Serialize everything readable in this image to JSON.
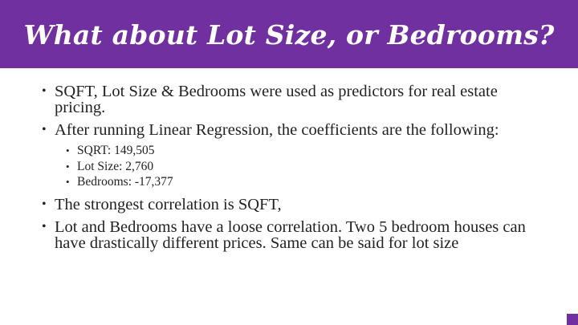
{
  "slide": {
    "title": "What about Lot Size, or Bedrooms?",
    "accent_color": "#7030a0",
    "bullets": [
      {
        "text": "SQFT, Lot Size & Bedrooms were used as predictors for real estate pricing."
      },
      {
        "text": "After running Linear Regression, the coefficients are the following:",
        "sub_bullets": [
          "SQRT: 149,505",
          "Lot Size: 2,760",
          "Bedrooms: -17,377"
        ]
      },
      {
        "text": "The strongest correlation is SQFT,"
      },
      {
        "text": "Lot and Bedrooms have a loose correlation. Two 5 bedroom houses can have drastically different prices. Same can be said for lot size"
      }
    ],
    "bullet_glyph": "•"
  }
}
